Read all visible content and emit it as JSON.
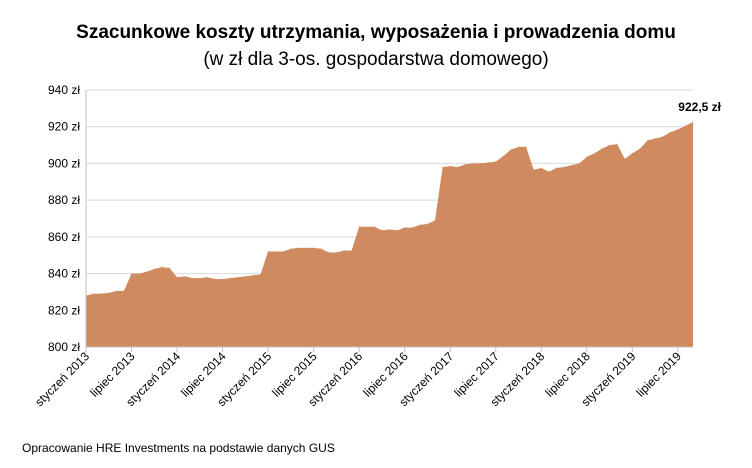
{
  "chart_data": {
    "type": "area",
    "title": "Szacunkowe koszty utrzymania, wyposażenia i prowadzenia domu",
    "subtitle": "(w zł dla 3-os. gospodarstwa domowego)",
    "unit": "zł",
    "ylim": [
      800,
      940
    ],
    "yticks": [
      800,
      820,
      840,
      860,
      880,
      900,
      920,
      940
    ],
    "ytick_labels": [
      "800 zł",
      "820 zł",
      "840 zł",
      "860 zł",
      "880 zł",
      "900 zł",
      "920 zł",
      "940 zł"
    ],
    "xtick_labels": [
      "styczeń 2013",
      "lipiec 2013",
      "styczeń 2014",
      "lipiec 2014",
      "styczeń 2015",
      "lipiec 2015",
      "styczeń 2016",
      "lipiec 2016",
      "styczeń 2017",
      "lipiec 2017",
      "styczeń 2018",
      "lipiec 2018",
      "styczeń 2019",
      "lipiec 2019"
    ],
    "x_start": "2013-01",
    "grid": true,
    "fill_color": "#cf8b5f",
    "values": [
      828,
      829,
      829,
      829.5,
      830.5,
      830.5,
      840,
      840,
      841,
      842.5,
      843.5,
      843,
      838,
      838.5,
      837.5,
      837.5,
      838,
      837,
      837,
      837.5,
      838,
      838.5,
      839,
      839.5,
      852,
      852,
      852,
      853.5,
      854,
      854,
      854,
      853.5,
      851.5,
      851.5,
      852.5,
      852.5,
      865.5,
      865.5,
      865.5,
      863.5,
      864,
      863.5,
      865,
      865,
      866.5,
      867,
      869,
      898,
      898.5,
      898,
      899.5,
      900,
      900,
      900.5,
      901,
      904,
      907.5,
      909,
      909,
      896.5,
      897.5,
      895.5,
      897.5,
      898,
      899,
      900,
      903.5,
      905.5,
      908,
      910,
      910.5,
      902.5,
      905.5,
      908,
      912.5,
      913.5,
      914.5,
      917,
      918.5,
      920.5,
      922.5
    ],
    "last_value_label": "922,5 zł"
  },
  "source_note": "Opracowanie HRE Investments na podstawie danych GUS"
}
